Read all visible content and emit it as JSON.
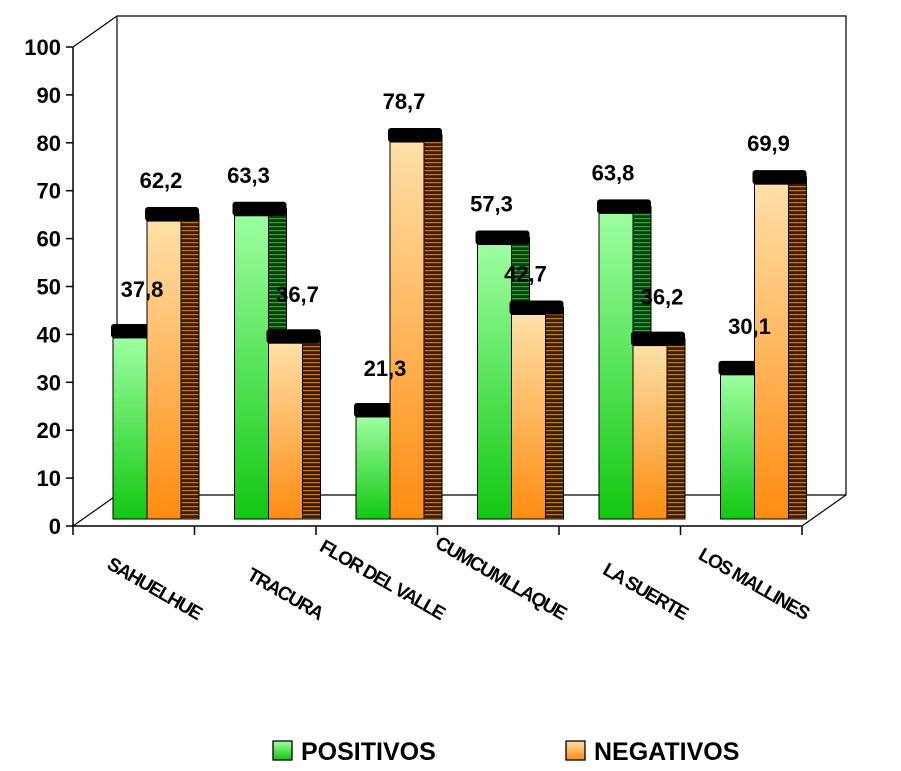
{
  "chart_data": {
    "type": "bar",
    "title": "",
    "xlabel": "",
    "ylabel": "",
    "ylim": [
      0,
      100
    ],
    "yticks": [
      0,
      10,
      20,
      30,
      40,
      50,
      60,
      70,
      80,
      90,
      100
    ],
    "categories": [
      "SAHUELHUE",
      "TRACURA",
      "FLOR DEL VALLE",
      "CUMCUMLLAQUE",
      "LA SUERTE",
      "LOS MALLINES"
    ],
    "series": [
      {
        "name": "POSITIVOS",
        "values": [
          37.8,
          63.3,
          21.3,
          57.3,
          63.8,
          30.1
        ],
        "labels": [
          "37,8",
          "63,3",
          "21,3",
          "57,3",
          "63,8",
          "30,1"
        ]
      },
      {
        "name": "NEGATIVOS",
        "values": [
          62.2,
          36.7,
          78.7,
          42.7,
          36.2,
          69.9
        ],
        "labels": [
          "62,2",
          "36,7",
          "78,7",
          "42,7",
          "36,2",
          "69,9"
        ]
      }
    ],
    "legend_position": "bottom",
    "grid": false,
    "three_d": true
  }
}
